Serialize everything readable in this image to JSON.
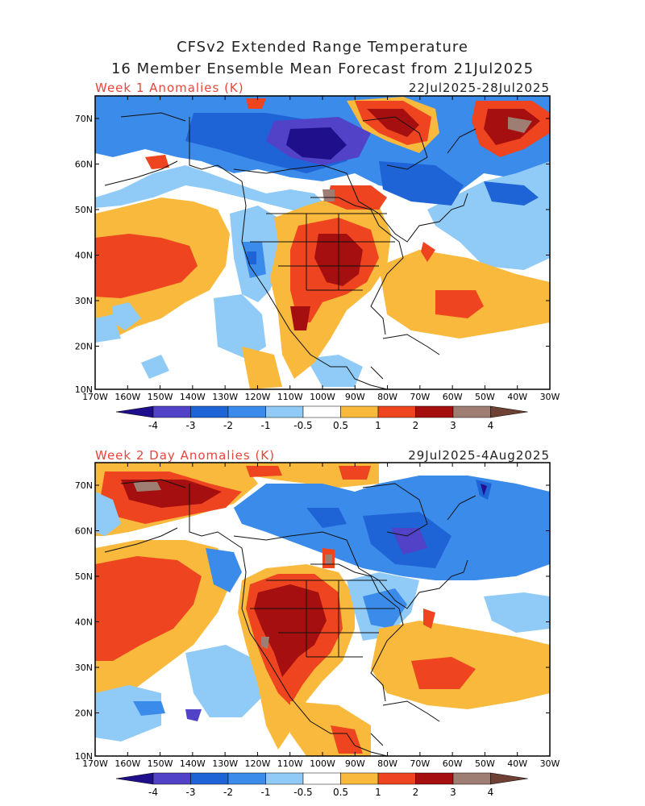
{
  "title": {
    "line1": "CFSv2 Extended Range Temperature",
    "line2": "16 Member Ensemble Mean Forecast from 21Jul2025"
  },
  "panels": [
    {
      "label": "Week 1 Anomalies (K)",
      "dates": "22Jul2025-28Jul2025"
    },
    {
      "label": "Week 2 Day Anomalies (K)",
      "dates": "29Jul2025-4Aug2025"
    }
  ],
  "lat_labels": [
    "70N",
    "60N",
    "50N",
    "40N",
    "30N",
    "20N",
    "10N"
  ],
  "lon_labels": [
    "170W",
    "160W",
    "150W",
    "140W",
    "130W",
    "120W",
    "110W",
    "100W",
    "90W",
    "80W",
    "70W",
    "60W",
    "50W",
    "40W",
    "30W"
  ],
  "colorbar": {
    "labels": [
      "-4",
      "-3",
      "-2",
      "-1",
      "-0.5",
      "0.5",
      "1",
      "2",
      "3",
      "4"
    ],
    "colors": [
      "#1f0f8a",
      "#5142c8",
      "#1e64d6",
      "#3b8bea",
      "#8fcbf6",
      "#ffffff",
      "#f9b93c",
      "#ee4420",
      "#a50f0f",
      "#9e7d72",
      "#6e4134"
    ]
  },
  "colors": {
    "title_text": "#222222",
    "panel_label": "#e8453a"
  }
}
